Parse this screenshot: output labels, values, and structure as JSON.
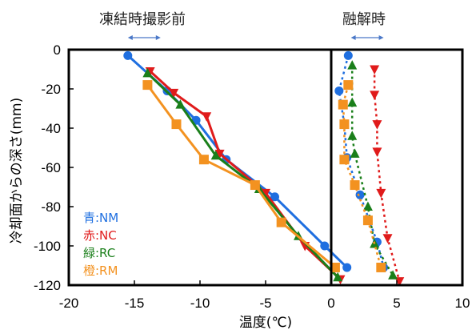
{
  "chart_data": {
    "type": "line",
    "xlabel": "温度(℃)",
    "ylabel": "冷却面からの深さ(mm)",
    "xlim": [
      -20,
      10
    ],
    "ylim": [
      -120,
      0
    ],
    "xticks": [
      -20,
      -15,
      -10,
      -5,
      0,
      5,
      10
    ],
    "yticks": [
      0,
      -20,
      -40,
      -60,
      -80,
      -100,
      -120
    ],
    "reference_line_x": 0,
    "group_labels": {
      "before": {
        "text": "凍結時撮影前",
        "x_range": [
          -15.5,
          -13
        ]
      },
      "melt": {
        "text": "融解時",
        "x_range": [
          1.5,
          4
        ]
      }
    },
    "legend": [
      {
        "label": "青:NM",
        "color": "#1f6fe0"
      },
      {
        "label": "赤:NC",
        "color": "#e01b1b"
      },
      {
        "label": "緑:RC",
        "color": "#1a7f1a"
      },
      {
        "label": "橙:RM",
        "color": "#f39220"
      }
    ],
    "series": [
      {
        "name": "NM",
        "phase": "before",
        "color": "#1f6fe0",
        "marker": "circle",
        "x": [
          -15.5,
          -12.5,
          -10.3,
          -8,
          -4.3,
          -0.5,
          1.2
        ],
        "y": [
          -3,
          -21,
          -36,
          -56,
          -75,
          -100,
          -111
        ]
      },
      {
        "name": "NC",
        "phase": "before",
        "color": "#e01b1b",
        "marker": "triangle-down",
        "x": [
          -13.8,
          -12,
          -9.5,
          -8.5,
          -5,
          -2,
          0.7
        ],
        "y": [
          -11,
          -22,
          -34,
          -53,
          -73,
          -100,
          -117
        ]
      },
      {
        "name": "RC",
        "phase": "before",
        "color": "#1a7f1a",
        "marker": "triangle-up",
        "x": [
          -14,
          -11.5,
          -8.8,
          -5.5,
          -2.5,
          0.5
        ],
        "y": [
          -12,
          -28,
          -54,
          -71,
          -95,
          -116
        ]
      },
      {
        "name": "RM",
        "phase": "before",
        "color": "#f39220",
        "marker": "square",
        "x": [
          -14,
          -11.8,
          -9.7,
          -5.8,
          -3.8,
          0.3
        ],
        "y": [
          -18,
          -38,
          -56,
          -69,
          -88,
          -111
        ]
      },
      {
        "name": "NM",
        "phase": "melt",
        "color": "#1f6fe0",
        "marker": "circle",
        "x": [
          1.3,
          0.6,
          1,
          1.2,
          2.2,
          3.5,
          4
        ],
        "y": [
          -3,
          -21,
          -38,
          -55,
          -74,
          -98,
          -111
        ]
      },
      {
        "name": "NC",
        "phase": "melt",
        "color": "#e01b1b",
        "marker": "triangle-down",
        "x": [
          3.3,
          3.3,
          3.5,
          3.5,
          3.8,
          4.3,
          5.2
        ],
        "y": [
          -10,
          -23,
          -38,
          -52,
          -73,
          -96,
          -118
        ]
      },
      {
        "name": "RC",
        "phase": "melt",
        "color": "#1a7f1a",
        "marker": "triangle-up",
        "x": [
          1.6,
          1.6,
          1.6,
          1.8,
          2.8,
          3.3,
          4.7
        ],
        "y": [
          -8,
          -27,
          -44,
          -53,
          -80,
          -99,
          -115
        ]
      },
      {
        "name": "RM",
        "phase": "melt",
        "color": "#f39220",
        "marker": "square",
        "x": [
          1.3,
          0.9,
          1,
          1,
          1.8,
          2.8,
          3.8
        ],
        "y": [
          -18,
          -28,
          -38,
          -56,
          -69,
          -87,
          -111
        ]
      }
    ]
  }
}
